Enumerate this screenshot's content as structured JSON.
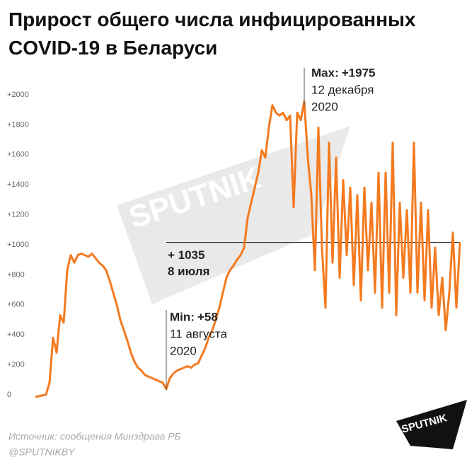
{
  "chart_data": {
    "type": "line",
    "title": "Прирост общего числа инфицированных COVID-19 в Беларуси",
    "ylim": [
      0,
      2000
    ],
    "yticks": [
      0,
      {
        "value": 200,
        "label": "+200"
      },
      {
        "value": 400,
        "label": "+400"
      },
      {
        "value": 600,
        "label": "+600"
      },
      {
        "value": 800,
        "label": "+800"
      },
      {
        "value": 1000,
        "label": "+1000"
      },
      {
        "value": 1200,
        "label": "+1200"
      },
      {
        "value": 1400,
        "label": "+1400"
      },
      {
        "value": 1600,
        "label": "+1600"
      },
      {
        "value": 1800,
        "label": "+1800"
      },
      {
        "value": 2000,
        "label": "+2000"
      }
    ],
    "color": "#f47a1f",
    "values": [
      5,
      10,
      15,
      20,
      100,
      400,
      300,
      550,
      500,
      850,
      950,
      900,
      950,
      960,
      950,
      940,
      960,
      930,
      900,
      880,
      850,
      780,
      700,
      620,
      520,
      450,
      380,
      300,
      240,
      200,
      180,
      150,
      140,
      130,
      120,
      110,
      100,
      58,
      130,
      160,
      180,
      190,
      200,
      210,
      200,
      220,
      230,
      280,
      330,
      400,
      450,
      520,
      600,
      700,
      800,
      850,
      880,
      920,
      950,
      1000,
      1200,
      1300,
      1400,
      1500,
      1650,
      1600,
      1800,
      1950,
      1900,
      1880,
      1900,
      1850,
      1880,
      1270,
      1900,
      1850,
      1975,
      1600,
      1350,
      850,
      1800,
      1000,
      600,
      1700,
      900,
      1600,
      800,
      1450,
      950,
      1400,
      750,
      1350,
      650,
      1400,
      850,
      1300,
      700,
      1500,
      600,
      1500,
      700,
      1700,
      550,
      1300,
      800,
      1250,
      700,
      1700,
      700,
      1300,
      650,
      1250,
      600,
      1000,
      550,
      800,
      450,
      700,
      1100,
      600,
      1035
    ],
    "annotations": {
      "max": {
        "label": "Max:",
        "value": 1975,
        "value_label": "+1975",
        "date": [
          "12 декабря",
          "2020"
        ]
      },
      "min": {
        "label": "Min:",
        "value": 58,
        "value_label": "+58",
        "date": [
          "11 августа",
          "2020"
        ]
      },
      "reference": {
        "value": 1035,
        "value_label": "+ 1035",
        "date": "8 июля"
      }
    },
    "source": "Источник: сообщения Минздрава РБ",
    "handle": "@SPUTNIKBY",
    "logo": "SPUTNIK"
  }
}
